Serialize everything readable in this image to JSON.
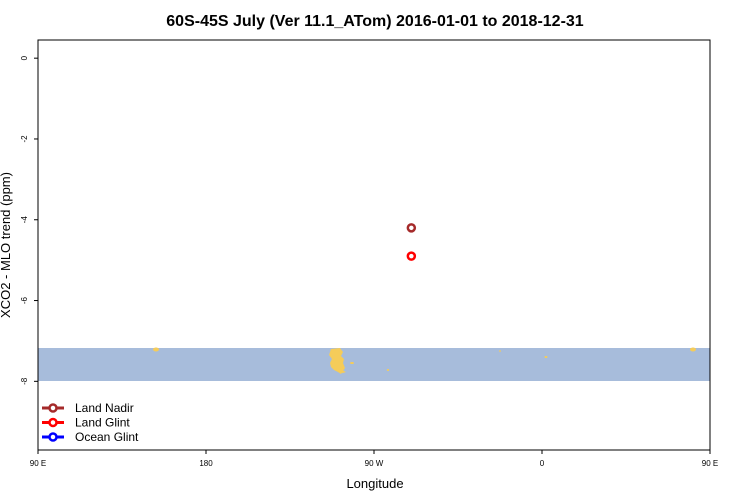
{
  "chart_data": {
    "type": "scatter",
    "title": "60S-45S July (Ver 11.1_ATom)   2016-01-01 to 2018-12-31",
    "xlabel": "Longitude",
    "ylabel": "XCO2 - MLO trend (ppm)",
    "xlim": [
      90,
      450
    ],
    "ylim": [
      -9.7,
      0.45
    ],
    "x_ticks": [
      {
        "value": 90,
        "label": "90 E"
      },
      {
        "value": 180,
        "label": "180"
      },
      {
        "value": 270,
        "label": "90 W"
      },
      {
        "value": 360,
        "label": "0"
      },
      {
        "value": 450,
        "label": "90 E"
      },
      {
        "value": 540,
        "label": "180"
      }
    ],
    "y_ticks": [
      {
        "value": 0,
        "label": "0"
      },
      {
        "value": -2,
        "label": "-2"
      },
      {
        "value": -4,
        "label": "-4"
      },
      {
        "value": -6,
        "label": "-6"
      },
      {
        "value": -8,
        "label": "-8"
      }
    ],
    "series": [
      {
        "name": "Land Nadir",
        "color": "#a52a2a",
        "points": [
          {
            "x": 290,
            "y": -4.2
          }
        ]
      },
      {
        "name": "Land Glint",
        "color": "#ff0000",
        "points": [
          {
            "x": 290,
            "y": -4.9
          }
        ]
      },
      {
        "name": "Ocean Glint",
        "color": "#0000ff",
        "points": []
      }
    ],
    "map_band": {
      "ocean_color": "#a7bcdb",
      "land_color": "#f5cc5a",
      "y_range": [
        -7.0,
        -7.8
      ]
    },
    "legend_position": "bottom-left",
    "grid": false
  }
}
